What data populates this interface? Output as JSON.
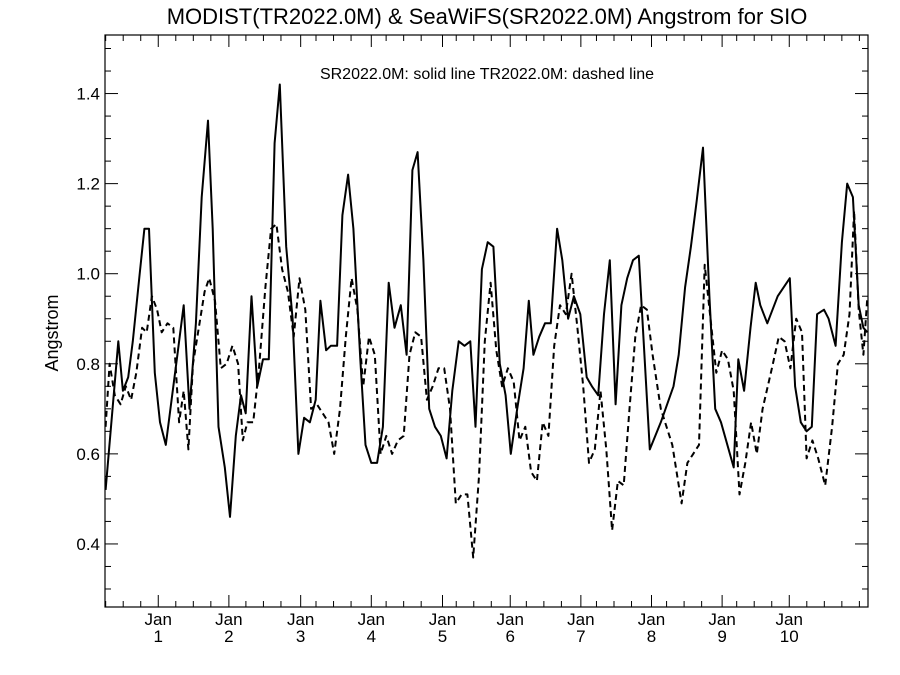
{
  "chart_data": {
    "type": "line",
    "title": "MODIST(TR2022.0M) & SeaWiFS(SR2022.0M)  Angstrom for SIO",
    "annotation": "SR2022.0M: solid line   TR2022.0M: dashed line",
    "xlabel": "",
    "ylabel": "Angstrom",
    "xlim": [
      1997.7,
      2010.88
    ],
    "ylim": [
      0.26,
      1.53
    ],
    "grid": false,
    "y_ticks": [
      {
        "value": 0.4,
        "label": "0.4"
      },
      {
        "value": 0.6,
        "label": "0.6"
      },
      {
        "value": 0.8,
        "label": "0.8"
      },
      {
        "value": 1.0,
        "label": "1.0"
      },
      {
        "value": 1.2,
        "label": "1.2"
      },
      {
        "value": 1.4,
        "label": "1.4"
      }
    ],
    "x_ticks": [
      {
        "value": 1998.62,
        "line1": "Jan",
        "line2": "1"
      },
      {
        "value": 1999.84,
        "line1": "Jan",
        "line2": "2"
      },
      {
        "value": 2001.08,
        "line1": "Jan",
        "line2": "3"
      },
      {
        "value": 2002.3,
        "line1": "Jan",
        "line2": "4"
      },
      {
        "value": 2003.53,
        "line1": "Jan",
        "line2": "5"
      },
      {
        "value": 2004.7,
        "line1": "Jan",
        "line2": "6"
      },
      {
        "value": 2005.92,
        "line1": "Jan",
        "line2": "7"
      },
      {
        "value": 2007.14,
        "line1": "Jan",
        "line2": "8"
      },
      {
        "value": 2008.36,
        "line1": "Jan",
        "line2": "9"
      },
      {
        "value": 2009.52,
        "line1": "Jan",
        "line2": "10"
      }
    ],
    "series": [
      {
        "name": "SR2022.0M",
        "style": "solid",
        "color": "#000000",
        "points": [
          [
            1997.71,
            0.52
          ],
          [
            1997.85,
            0.73
          ],
          [
            1997.93,
            0.85
          ],
          [
            1998.01,
            0.74
          ],
          [
            1998.1,
            0.77
          ],
          [
            1998.18,
            0.85
          ],
          [
            1998.3,
            1.0
          ],
          [
            1998.38,
            1.1
          ],
          [
            1998.46,
            1.1
          ],
          [
            1998.56,
            0.78
          ],
          [
            1998.65,
            0.67
          ],
          [
            1998.75,
            0.62
          ],
          [
            1998.85,
            0.72
          ],
          [
            1998.95,
            0.82
          ],
          [
            1999.06,
            0.93
          ],
          [
            1999.16,
            0.7
          ],
          [
            1999.27,
            0.89
          ],
          [
            1999.37,
            1.17
          ],
          [
            1999.48,
            1.34
          ],
          [
            1999.56,
            1.1
          ],
          [
            1999.66,
            0.66
          ],
          [
            1999.77,
            0.57
          ],
          [
            1999.86,
            0.46
          ],
          [
            1999.96,
            0.64
          ],
          [
            2000.05,
            0.73
          ],
          [
            2000.13,
            0.69
          ],
          [
            2000.23,
            0.95
          ],
          [
            2000.33,
            0.75
          ],
          [
            2000.43,
            0.81
          ],
          [
            2000.53,
            0.81
          ],
          [
            2000.63,
            1.29
          ],
          [
            2000.72,
            1.42
          ],
          [
            2000.83,
            1.06
          ],
          [
            2000.94,
            0.9
          ],
          [
            2001.04,
            0.6
          ],
          [
            2001.14,
            0.68
          ],
          [
            2001.24,
            0.67
          ],
          [
            2001.34,
            0.72
          ],
          [
            2001.42,
            0.94
          ],
          [
            2001.52,
            0.83
          ],
          [
            2001.6,
            0.84
          ],
          [
            2001.71,
            0.84
          ],
          [
            2001.8,
            1.13
          ],
          [
            2001.9,
            1.22
          ],
          [
            2001.99,
            1.1
          ],
          [
            2002.11,
            0.81
          ],
          [
            2002.2,
            0.62
          ],
          [
            2002.3,
            0.58
          ],
          [
            2002.4,
            0.58
          ],
          [
            2002.5,
            0.66
          ],
          [
            2002.6,
            0.98
          ],
          [
            2002.7,
            0.88
          ],
          [
            2002.81,
            0.93
          ],
          [
            2002.91,
            0.82
          ],
          [
            2003.01,
            1.23
          ],
          [
            2003.1,
            1.27
          ],
          [
            2003.2,
            1.03
          ],
          [
            2003.3,
            0.7
          ],
          [
            2003.4,
            0.66
          ],
          [
            2003.5,
            0.64
          ],
          [
            2003.6,
            0.59
          ],
          [
            2003.7,
            0.74
          ],
          [
            2003.81,
            0.85
          ],
          [
            2003.91,
            0.84
          ],
          [
            2004.01,
            0.85
          ],
          [
            2004.1,
            0.66
          ],
          [
            2004.21,
            1.01
          ],
          [
            2004.31,
            1.07
          ],
          [
            2004.41,
            1.06
          ],
          [
            2004.52,
            0.8
          ],
          [
            2004.62,
            0.73
          ],
          [
            2004.71,
            0.6
          ],
          [
            2004.82,
            0.7
          ],
          [
            2004.93,
            0.79
          ],
          [
            2005.02,
            0.94
          ],
          [
            2005.1,
            0.82
          ],
          [
            2005.2,
            0.86
          ],
          [
            2005.3,
            0.89
          ],
          [
            2005.4,
            0.89
          ],
          [
            2005.51,
            1.1
          ],
          [
            2005.6,
            1.03
          ],
          [
            2005.7,
            0.9
          ],
          [
            2005.8,
            0.95
          ],
          [
            2005.91,
            0.91
          ],
          [
            2006.02,
            0.77
          ],
          [
            2006.11,
            0.75
          ],
          [
            2006.22,
            0.73
          ],
          [
            2006.32,
            0.91
          ],
          [
            2006.42,
            1.03
          ],
          [
            2006.52,
            0.71
          ],
          [
            2006.62,
            0.93
          ],
          [
            2006.72,
            0.99
          ],
          [
            2006.82,
            1.03
          ],
          [
            2006.92,
            1.04
          ],
          [
            2007.11,
            0.61
          ],
          [
            2007.3,
            0.67
          ],
          [
            2007.52,
            0.75
          ],
          [
            2007.61,
            0.82
          ],
          [
            2007.72,
            0.97
          ],
          [
            2007.82,
            1.06
          ],
          [
            2007.92,
            1.16
          ],
          [
            2008.03,
            1.28
          ],
          [
            2008.14,
            0.95
          ],
          [
            2008.24,
            0.7
          ],
          [
            2008.34,
            0.67
          ],
          [
            2008.56,
            0.57
          ],
          [
            2008.64,
            0.81
          ],
          [
            2008.74,
            0.74
          ],
          [
            2008.85,
            0.88
          ],
          [
            2008.94,
            0.98
          ],
          [
            2009.02,
            0.93
          ],
          [
            2009.14,
            0.89
          ],
          [
            2009.32,
            0.95
          ],
          [
            2009.53,
            0.99
          ],
          [
            2009.62,
            0.75
          ],
          [
            2009.72,
            0.67
          ],
          [
            2009.82,
            0.65
          ],
          [
            2009.91,
            0.66
          ],
          [
            2010.0,
            0.91
          ],
          [
            2010.12,
            0.92
          ],
          [
            2010.2,
            0.9
          ],
          [
            2010.32,
            0.84
          ],
          [
            2010.43,
            1.07
          ],
          [
            2010.52,
            1.2
          ],
          [
            2010.62,
            1.17
          ],
          [
            2010.72,
            0.93
          ],
          [
            2010.8,
            0.88
          ],
          [
            2010.87,
            0.87
          ]
        ]
      },
      {
        "name": "TR2022.0M",
        "style": "dashed",
        "color": "#000000",
        "points": [
          [
            1997.71,
            0.66
          ],
          [
            1997.78,
            0.8
          ],
          [
            1997.87,
            0.73
          ],
          [
            1997.97,
            0.71
          ],
          [
            1998.06,
            0.75
          ],
          [
            1998.15,
            0.72
          ],
          [
            1998.24,
            0.78
          ],
          [
            1998.34,
            0.88
          ],
          [
            1998.42,
            0.87
          ],
          [
            1998.51,
            0.95
          ],
          [
            1998.6,
            0.92
          ],
          [
            1998.68,
            0.87
          ],
          [
            1998.78,
            0.89
          ],
          [
            1998.88,
            0.88
          ],
          [
            1998.98,
            0.67
          ],
          [
            1999.06,
            0.74
          ],
          [
            1999.14,
            0.61
          ],
          [
            1999.22,
            0.8
          ],
          [
            1999.32,
            0.88
          ],
          [
            1999.42,
            0.96
          ],
          [
            1999.5,
            0.99
          ],
          [
            1999.6,
            0.94
          ],
          [
            1999.7,
            0.79
          ],
          [
            1999.8,
            0.8
          ],
          [
            1999.9,
            0.84
          ],
          [
            2000.0,
            0.8
          ],
          [
            2000.08,
            0.63
          ],
          [
            2000.16,
            0.67
          ],
          [
            2000.26,
            0.67
          ],
          [
            2000.36,
            0.79
          ],
          [
            2000.47,
            0.97
          ],
          [
            2000.57,
            1.1
          ],
          [
            2000.66,
            1.11
          ],
          [
            2000.76,
            1.01
          ],
          [
            2000.86,
            0.96
          ],
          [
            2000.96,
            0.86
          ],
          [
            2001.06,
            0.99
          ],
          [
            2001.16,
            0.92
          ],
          [
            2001.26,
            0.7
          ],
          [
            2001.36,
            0.71
          ],
          [
            2001.46,
            0.69
          ],
          [
            2001.56,
            0.67
          ],
          [
            2001.66,
            0.6
          ],
          [
            2001.76,
            0.7
          ],
          [
            2001.86,
            0.86
          ],
          [
            2001.96,
            0.99
          ],
          [
            2002.06,
            0.92
          ],
          [
            2002.16,
            0.75
          ],
          [
            2002.26,
            0.86
          ],
          [
            2002.36,
            0.82
          ],
          [
            2002.46,
            0.6
          ],
          [
            2002.56,
            0.64
          ],
          [
            2002.66,
            0.6
          ],
          [
            2002.76,
            0.63
          ],
          [
            2002.86,
            0.64
          ],
          [
            2002.96,
            0.82
          ],
          [
            2003.06,
            0.87
          ],
          [
            2003.16,
            0.86
          ],
          [
            2003.26,
            0.72
          ],
          [
            2003.36,
            0.75
          ],
          [
            2003.46,
            0.79
          ],
          [
            2003.56,
            0.79
          ],
          [
            2003.66,
            0.7
          ],
          [
            2003.76,
            0.49
          ],
          [
            2003.86,
            0.51
          ],
          [
            2003.96,
            0.51
          ],
          [
            2004.06,
            0.37
          ],
          [
            2004.16,
            0.55
          ],
          [
            2004.26,
            0.85
          ],
          [
            2004.36,
            0.98
          ],
          [
            2004.46,
            0.83
          ],
          [
            2004.56,
            0.75
          ],
          [
            2004.66,
            0.79
          ],
          [
            2004.76,
            0.76
          ],
          [
            2004.86,
            0.63
          ],
          [
            2004.96,
            0.66
          ],
          [
            2005.06,
            0.56
          ],
          [
            2005.16,
            0.54
          ],
          [
            2005.26,
            0.67
          ],
          [
            2005.36,
            0.64
          ],
          [
            2005.46,
            0.84
          ],
          [
            2005.56,
            0.93
          ],
          [
            2005.66,
            0.91
          ],
          [
            2005.76,
            1.0
          ],
          [
            2005.86,
            0.88
          ],
          [
            2005.96,
            0.75
          ],
          [
            2006.06,
            0.58
          ],
          [
            2006.16,
            0.61
          ],
          [
            2006.26,
            0.74
          ],
          [
            2006.36,
            0.61
          ],
          [
            2006.46,
            0.43
          ],
          [
            2006.56,
            0.54
          ],
          [
            2006.66,
            0.53
          ],
          [
            2006.76,
            0.7
          ],
          [
            2006.86,
            0.86
          ],
          [
            2006.96,
            0.93
          ],
          [
            2007.06,
            0.92
          ],
          [
            2007.16,
            0.82
          ],
          [
            2007.3,
            0.7
          ],
          [
            2007.5,
            0.62
          ],
          [
            2007.66,
            0.49
          ],
          [
            2007.76,
            0.58
          ],
          [
            2007.86,
            0.6
          ],
          [
            2007.96,
            0.62
          ],
          [
            2008.06,
            1.02
          ],
          [
            2008.16,
            0.9
          ],
          [
            2008.26,
            0.78
          ],
          [
            2008.36,
            0.83
          ],
          [
            2008.46,
            0.81
          ],
          [
            2008.56,
            0.74
          ],
          [
            2008.66,
            0.51
          ],
          [
            2008.76,
            0.58
          ],
          [
            2008.86,
            0.67
          ],
          [
            2008.96,
            0.6
          ],
          [
            2009.06,
            0.7
          ],
          [
            2009.22,
            0.79
          ],
          [
            2009.34,
            0.86
          ],
          [
            2009.44,
            0.85
          ],
          [
            2009.54,
            0.79
          ],
          [
            2009.64,
            0.9
          ],
          [
            2009.74,
            0.87
          ],
          [
            2009.82,
            0.59
          ],
          [
            2009.92,
            0.63
          ],
          [
            2010.02,
            0.59
          ],
          [
            2010.14,
            0.53
          ],
          [
            2010.26,
            0.66
          ],
          [
            2010.36,
            0.8
          ],
          [
            2010.46,
            0.82
          ],
          [
            2010.56,
            0.91
          ],
          [
            2010.64,
            1.14
          ],
          [
            2010.72,
            0.92
          ],
          [
            2010.8,
            0.82
          ],
          [
            2010.87,
            0.95
          ]
        ]
      }
    ]
  }
}
